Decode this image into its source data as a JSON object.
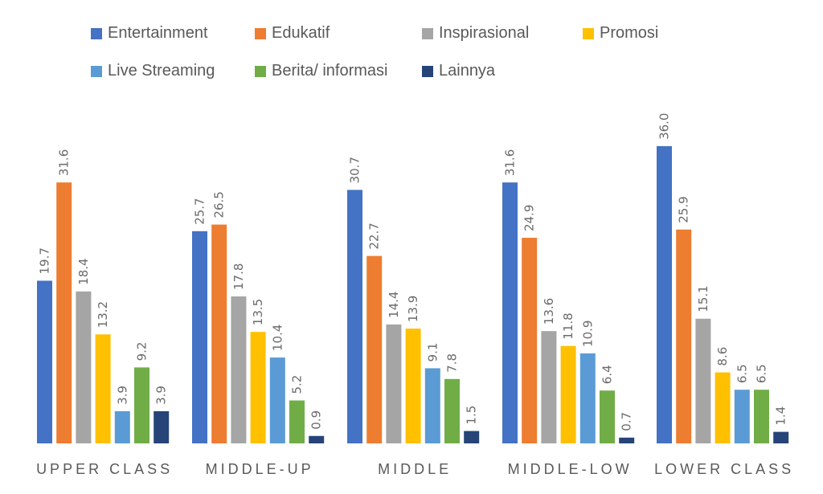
{
  "chart_data": {
    "type": "bar",
    "title": "",
    "xlabel": "",
    "ylabel": "",
    "ylim": [
      0,
      36
    ],
    "grid": false,
    "legend_position": "top",
    "categories": [
      "UPPER CLASS",
      "MIDDLE-UP",
      "MIDDLE",
      "MIDDLE-LOW",
      "LOWER CLASS"
    ],
    "series": [
      {
        "name": "Entertainment",
        "color": "#4472C4",
        "values": [
          19.7,
          25.7,
          30.7,
          31.6,
          36.0
        ],
        "labels": [
          "19.7",
          "25.7",
          "30.7",
          "31.6",
          "36.0"
        ]
      },
      {
        "name": "Edukatif",
        "color": "#ED7D31",
        "values": [
          31.6,
          26.5,
          22.7,
          24.9,
          25.9
        ],
        "labels": [
          "31.6",
          "26.5",
          "22.7",
          "24.9",
          "25.9"
        ]
      },
      {
        "name": "Inspirasional",
        "color": "#A5A5A5",
        "values": [
          18.4,
          17.8,
          14.4,
          13.6,
          15.1
        ],
        "labels": [
          "18.4",
          "17.8",
          "14.4",
          "13.6",
          "15.1"
        ]
      },
      {
        "name": "Promosi",
        "color": "#FFC000",
        "values": [
          13.2,
          13.5,
          13.9,
          11.8,
          8.6
        ],
        "labels": [
          "13.2",
          "13.5",
          "13.9",
          "11.8",
          "8.6"
        ]
      },
      {
        "name": "Live Streaming",
        "color": "#5B9BD5",
        "values": [
          3.9,
          10.4,
          9.1,
          10.9,
          6.5
        ],
        "labels": [
          "3.9",
          "10.4",
          "9.1",
          "10.9",
          "6.5"
        ]
      },
      {
        "name": "Berita/ informasi",
        "color": "#70AD47",
        "values": [
          9.2,
          5.2,
          7.8,
          6.4,
          6.5
        ],
        "labels": [
          "9.2",
          "5.2",
          "7.8",
          "6.4",
          "6.5"
        ]
      },
      {
        "name": "Lainnya",
        "color": "#264478",
        "values": [
          3.9,
          0.9,
          1.5,
          0.7,
          1.4
        ],
        "labels": [
          "3.9",
          "0.9",
          "1.5",
          "0.7",
          "1.4"
        ]
      }
    ]
  }
}
